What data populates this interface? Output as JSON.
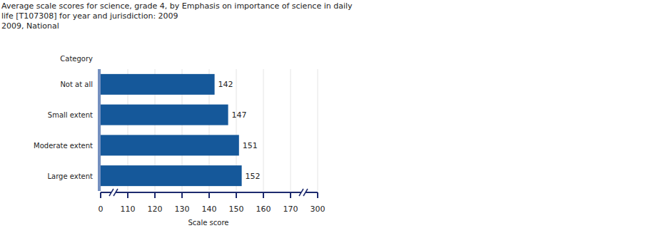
{
  "chart_data": {
    "type": "bar",
    "orientation": "horizontal",
    "title": "Average scale scores for science, grade 4, by Emphasis on importance of science in daily life [T107308] for year and jurisdiction: 2009",
    "subtitle": "2009, National",
    "ylabel": "Category",
    "xlabel": "Scale score",
    "categories": [
      "Not at all",
      "Small extent",
      "Moderate extent",
      "Large extent"
    ],
    "values": [
      142,
      147,
      151,
      152
    ],
    "color": "#15589a",
    "xlim": [
      0,
      300
    ],
    "xticks": [
      0,
      110,
      120,
      130,
      140,
      150,
      160,
      170,
      300
    ],
    "grid": true,
    "data_labels": true
  }
}
